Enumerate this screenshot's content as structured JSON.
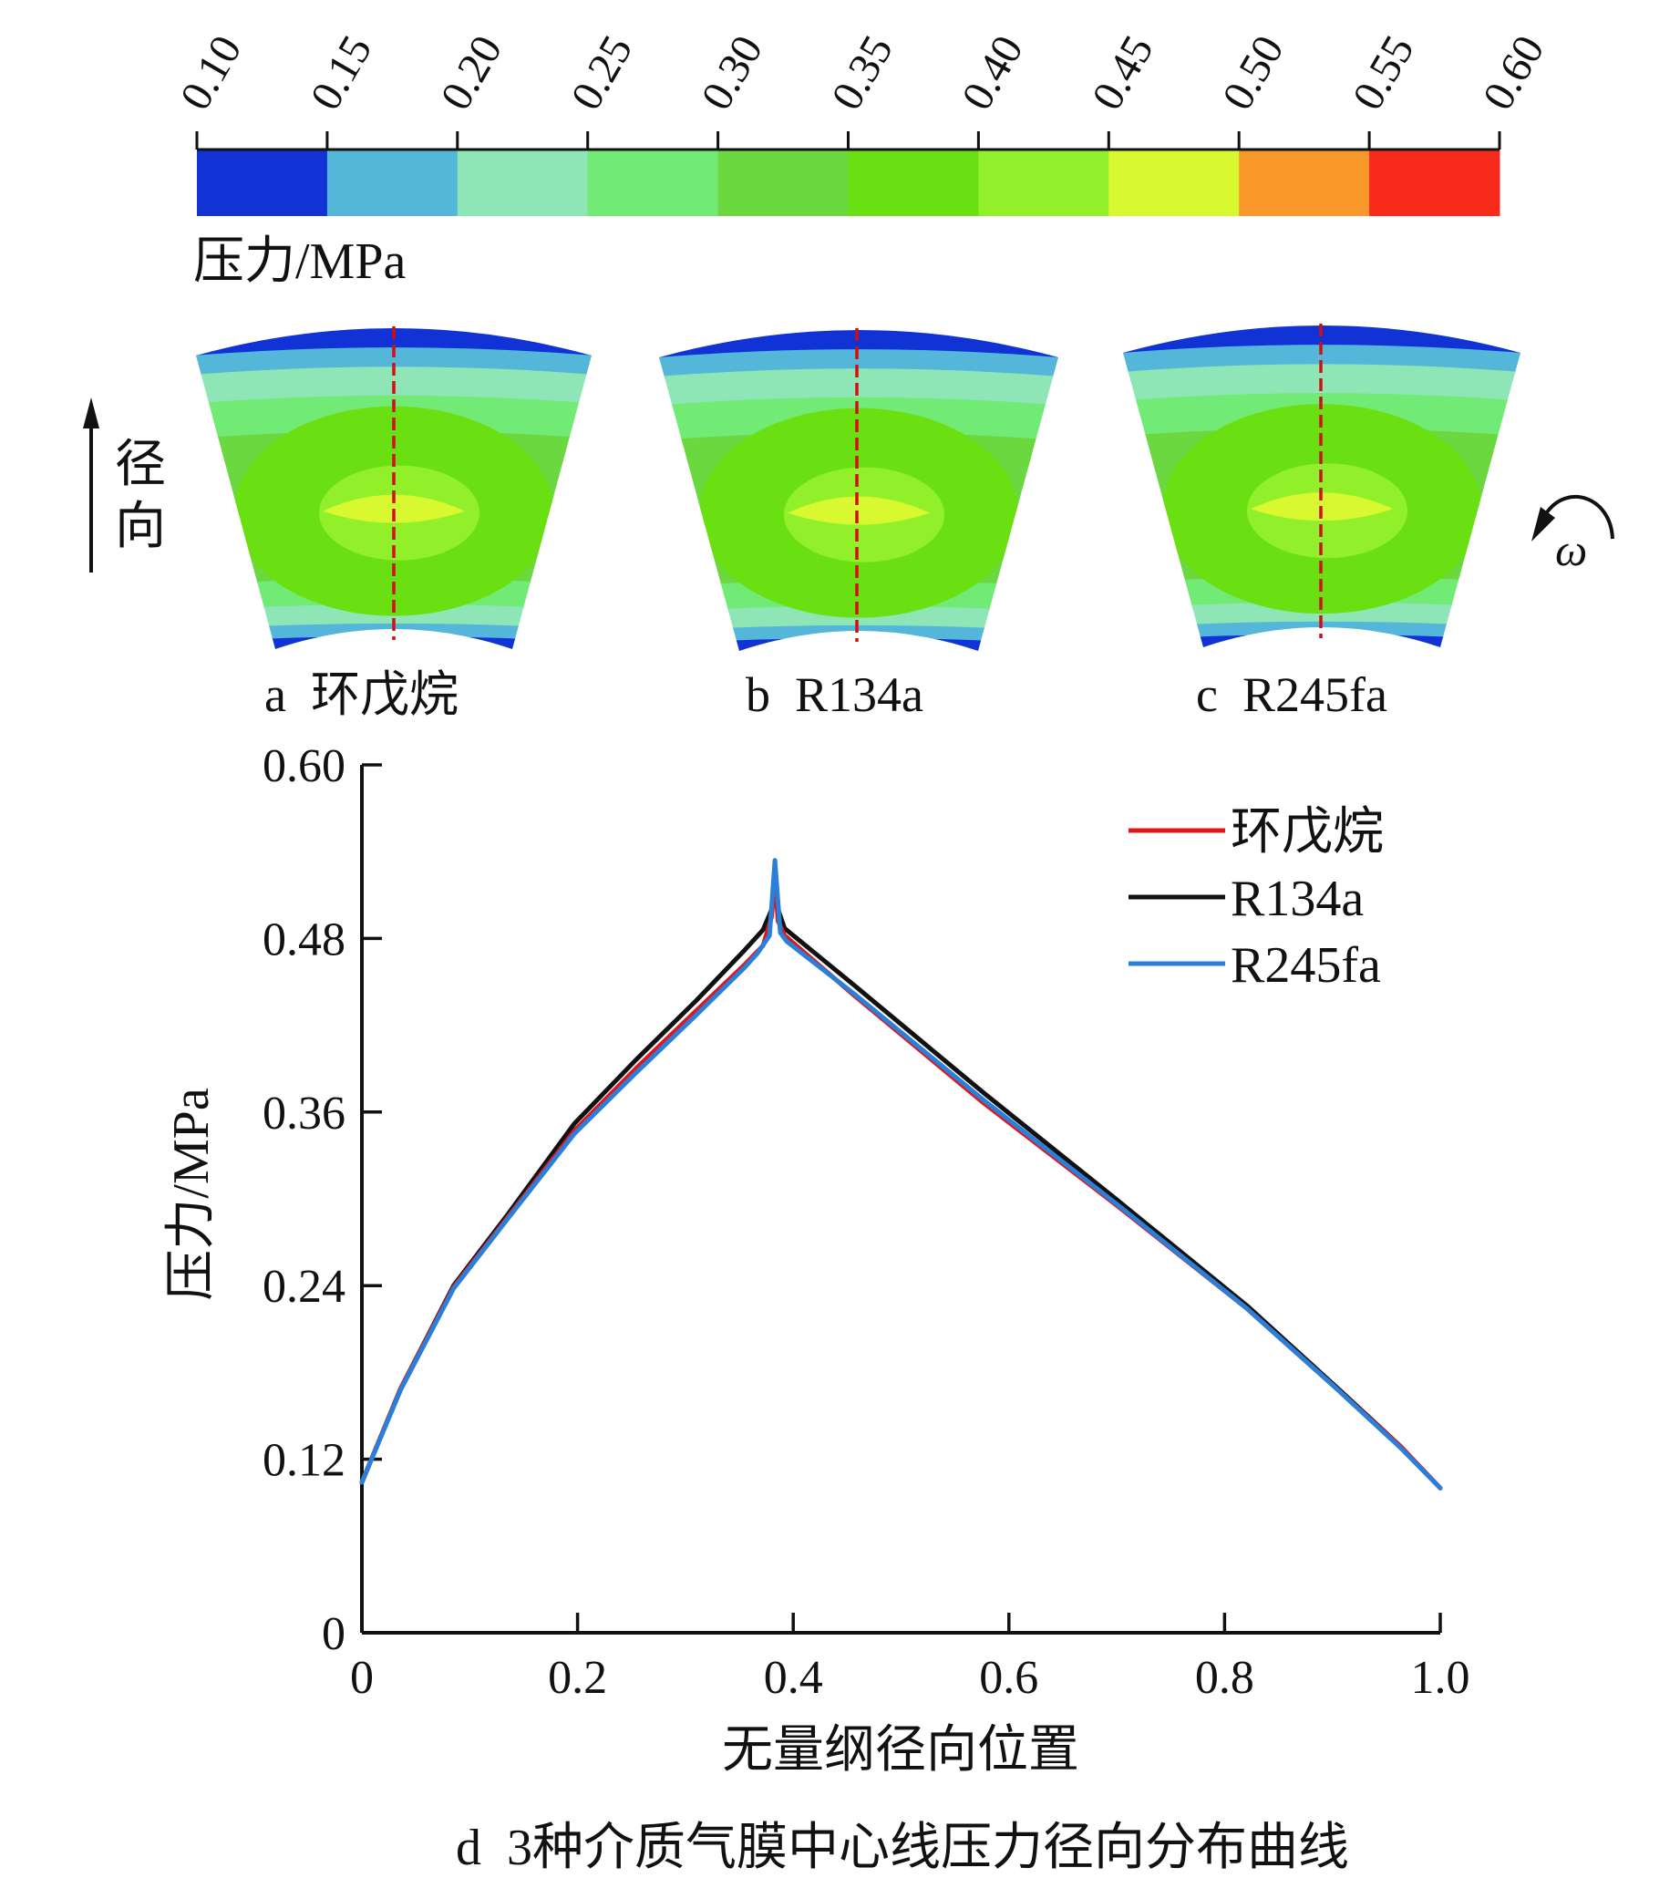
{
  "colorbar": {
    "tick_labels": [
      "0.10",
      "0.15",
      "0.20",
      "0.25",
      "0.30",
      "0.35",
      "0.40",
      "0.45",
      "0.50",
      "0.55",
      "0.60"
    ],
    "levels": [
      0.1,
      0.15,
      0.2,
      0.25,
      0.3,
      0.35,
      0.4,
      0.45,
      0.5,
      0.55,
      0.6
    ],
    "colors": [
      "#1133d6",
      "#54b6d8",
      "#8ee6b6",
      "#72ea76",
      "#6ad83e",
      "#6ae012",
      "#92f02a",
      "#d8f830",
      "#f8982a",
      "#f82a1c"
    ],
    "label": "压力/MPa"
  },
  "contour_panels": [
    {
      "id": "a",
      "label": "a  环戊烷",
      "medium": "环戊烷"
    },
    {
      "id": "b",
      "label": "b  R134a",
      "medium": "R134a"
    },
    {
      "id": "c",
      "label": "c  R245fa",
      "medium": "R245fa"
    }
  ],
  "radial_direction_label": [
    "径",
    "向"
  ],
  "rotation_label": "ω",
  "centerline_color": "#d01010",
  "chart_data": {
    "type": "line",
    "title": "d  3种介质气膜中心线压力径向分布曲线",
    "xlabel": "无量纲径向位置",
    "ylabel": "压力/MPa",
    "xlim": [
      0,
      1.0
    ],
    "ylim": [
      0,
      0.6
    ],
    "xticks": [
      0,
      0.2,
      0.4,
      0.6,
      0.8,
      1.0
    ],
    "xtick_labels": [
      "0",
      "0.2",
      "0.4",
      "0.6",
      "0.8",
      "1.0"
    ],
    "yticks": [
      0,
      0.12,
      0.24,
      0.36,
      0.48,
      0.6
    ],
    "ytick_labels": [
      "0",
      "0.12",
      "0.24",
      "0.36",
      "0.48",
      "0.60"
    ],
    "grid": false,
    "legend_position": "top-right",
    "series": [
      {
        "name": "环戊烷",
        "color": "#e0161c",
        "x": [
          0,
          0.036,
          0.085,
          0.135,
          0.197,
          0.254,
          0.31,
          0.355,
          0.372,
          0.38,
          0.383,
          0.386,
          0.392,
          0.456,
          0.577,
          0.699,
          0.821,
          0.902,
          0.963,
          1.0
        ],
        "y": [
          0.104,
          0.169,
          0.239,
          0.287,
          0.347,
          0.39,
          0.43,
          0.462,
          0.475,
          0.495,
          0.52,
          0.492,
          0.482,
          0.441,
          0.366,
          0.296,
          0.224,
          0.17,
          0.129,
          0.1
        ]
      },
      {
        "name": "R134a",
        "color": "#111111",
        "x": [
          0,
          0.036,
          0.085,
          0.135,
          0.197,
          0.254,
          0.31,
          0.355,
          0.372,
          0.38,
          0.383,
          0.386,
          0.392,
          0.456,
          0.577,
          0.699,
          0.821,
          0.902,
          0.963,
          1.0
        ],
        "y": [
          0.104,
          0.169,
          0.24,
          0.289,
          0.352,
          0.396,
          0.437,
          0.472,
          0.486,
          0.5,
          0.521,
          0.5,
          0.487,
          0.448,
          0.373,
          0.3,
          0.226,
          0.171,
          0.129,
          0.1
        ]
      },
      {
        "name": "R245fa",
        "color": "#2a7fd8",
        "x": [
          0,
          0.036,
          0.085,
          0.135,
          0.197,
          0.254,
          0.31,
          0.355,
          0.367,
          0.378,
          0.383,
          0.388,
          0.394,
          0.456,
          0.577,
          0.699,
          0.821,
          0.902,
          0.963,
          1.0
        ],
        "y": [
          0.104,
          0.168,
          0.238,
          0.286,
          0.345,
          0.387,
          0.427,
          0.46,
          0.47,
          0.482,
          0.534,
          0.484,
          0.478,
          0.442,
          0.368,
          0.297,
          0.224,
          0.17,
          0.128,
          0.1
        ]
      }
    ]
  }
}
